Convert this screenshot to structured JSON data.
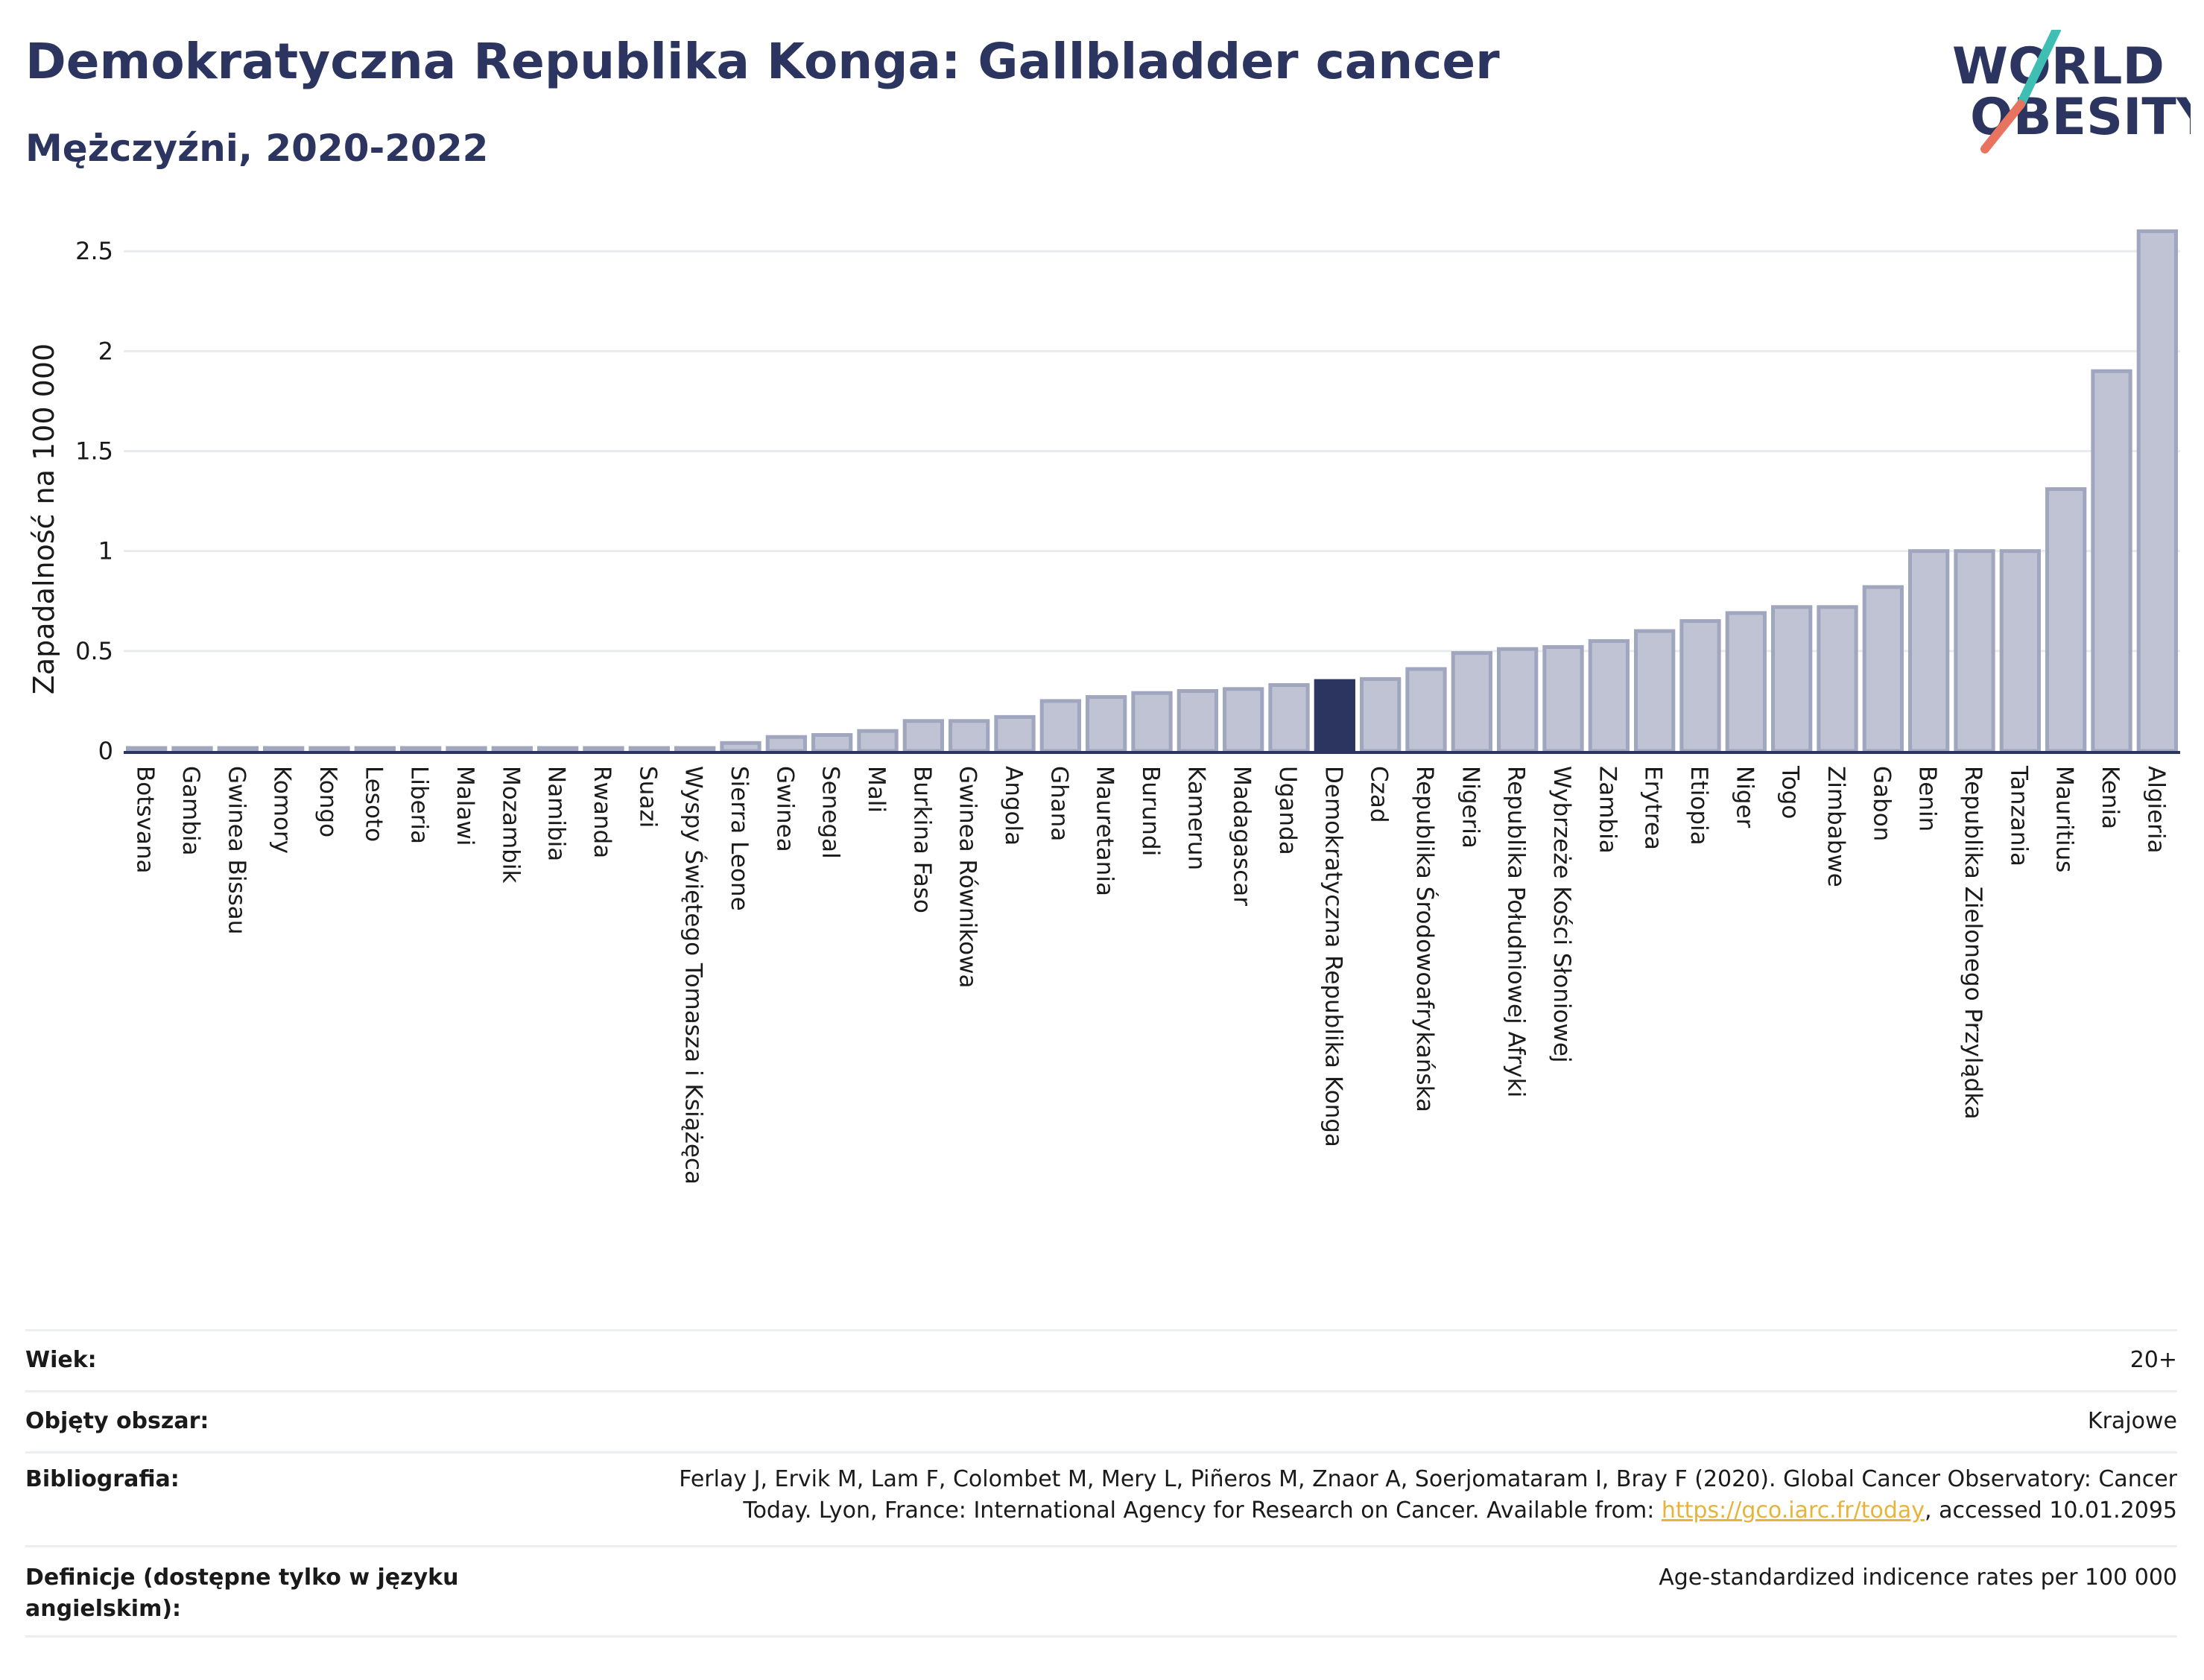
{
  "header": {
    "title": "Demokratyczna Republika Konga: Gallbladder cancer",
    "subtitle": "Mężczyźni, 2020-2022"
  },
  "logo": {
    "line1": "WORLD",
    "line2": "OBESITY",
    "colors": {
      "text": "#2b3560",
      "slash_teal": "#3fbfb4",
      "slash_coral": "#e8735f"
    }
  },
  "colors": {
    "bar": "#bfc3d3",
    "bar_border": "#a0a6bd",
    "highlight": "#2b3560",
    "grid": "#e9ebef",
    "axis": "#2b3560"
  },
  "chart_data": {
    "type": "bar",
    "ylabel": "Zapadalność na 100 000",
    "ylim": [
      0,
      2.62
    ],
    "yticks": [
      "0",
      "0.5",
      "1",
      "1.5",
      "2",
      "2.5"
    ],
    "highlight": "Demokratyczna Republika Konga",
    "categories": [
      "Botsvana",
      "Gambia",
      "Gwinea Bissau",
      "Komory",
      "Kongo",
      "Lesoto",
      "Liberia",
      "Malawi",
      "Mozambik",
      "Namibia",
      "Rwanda",
      "Suazi",
      "Wyspy Świętego Tomasza i Książęca",
      "Sierra Leone",
      "Gwinea",
      "Senegal",
      "Mali",
      "Burkina Faso",
      "Gwinea Równikowa",
      "Angola",
      "Ghana",
      "Mauretania",
      "Burundi",
      "Kamerun",
      "Madagascar",
      "Uganda",
      "Demokratyczna Republika Konga",
      "Czad",
      "Republika Środowoafrykańska",
      "Nigeria",
      "Republika Południowej Afryki",
      "Wybrzeże Kości Słoniowej",
      "Zambia",
      "Erytrea",
      "Etiopia",
      "Niger",
      "Togo",
      "Zimbabwe",
      "Gabon",
      "Benin",
      "Republika Zielonego Przylądka",
      "Tanzania",
      "Mauritius",
      "Kenia",
      "Algieria"
    ],
    "values": [
      0.01,
      0.01,
      0.01,
      0.01,
      0.01,
      0.01,
      0.01,
      0.01,
      0.01,
      0.01,
      0.01,
      0.01,
      0.01,
      0.04,
      0.07,
      0.08,
      0.1,
      0.15,
      0.15,
      0.17,
      0.25,
      0.27,
      0.29,
      0.3,
      0.31,
      0.33,
      0.35,
      0.36,
      0.41,
      0.49,
      0.51,
      0.52,
      0.55,
      0.6,
      0.65,
      0.69,
      0.72,
      0.72,
      0.82,
      1.0,
      1.0,
      1.0,
      1.31,
      1.9,
      2.6
    ]
  },
  "info": {
    "rows": [
      {
        "key": "Wiek:",
        "value": "20+"
      },
      {
        "key": "Objęty obszar:",
        "value": "Krajowe"
      },
      {
        "key": "Bibliografia:",
        "value_line1": "Ferlay J, Ervik M, Lam F, Colombet M, Mery L, Piñeros M, Znaor A, Soerjomataram I, Bray F (2020). Global Cancer Observatory: Cancer",
        "value_line2_pre": "Today. Lyon, France: International Agency for Research on Cancer. Available from: ",
        "link": "https://gco.iarc.fr/today",
        "value_line2_post": ", accessed 10.01.2095"
      },
      {
        "key": "Definicje (dostępne tylko w języku angielskim):",
        "value": "Age-standardized indicence rates per 100 000"
      }
    ]
  }
}
